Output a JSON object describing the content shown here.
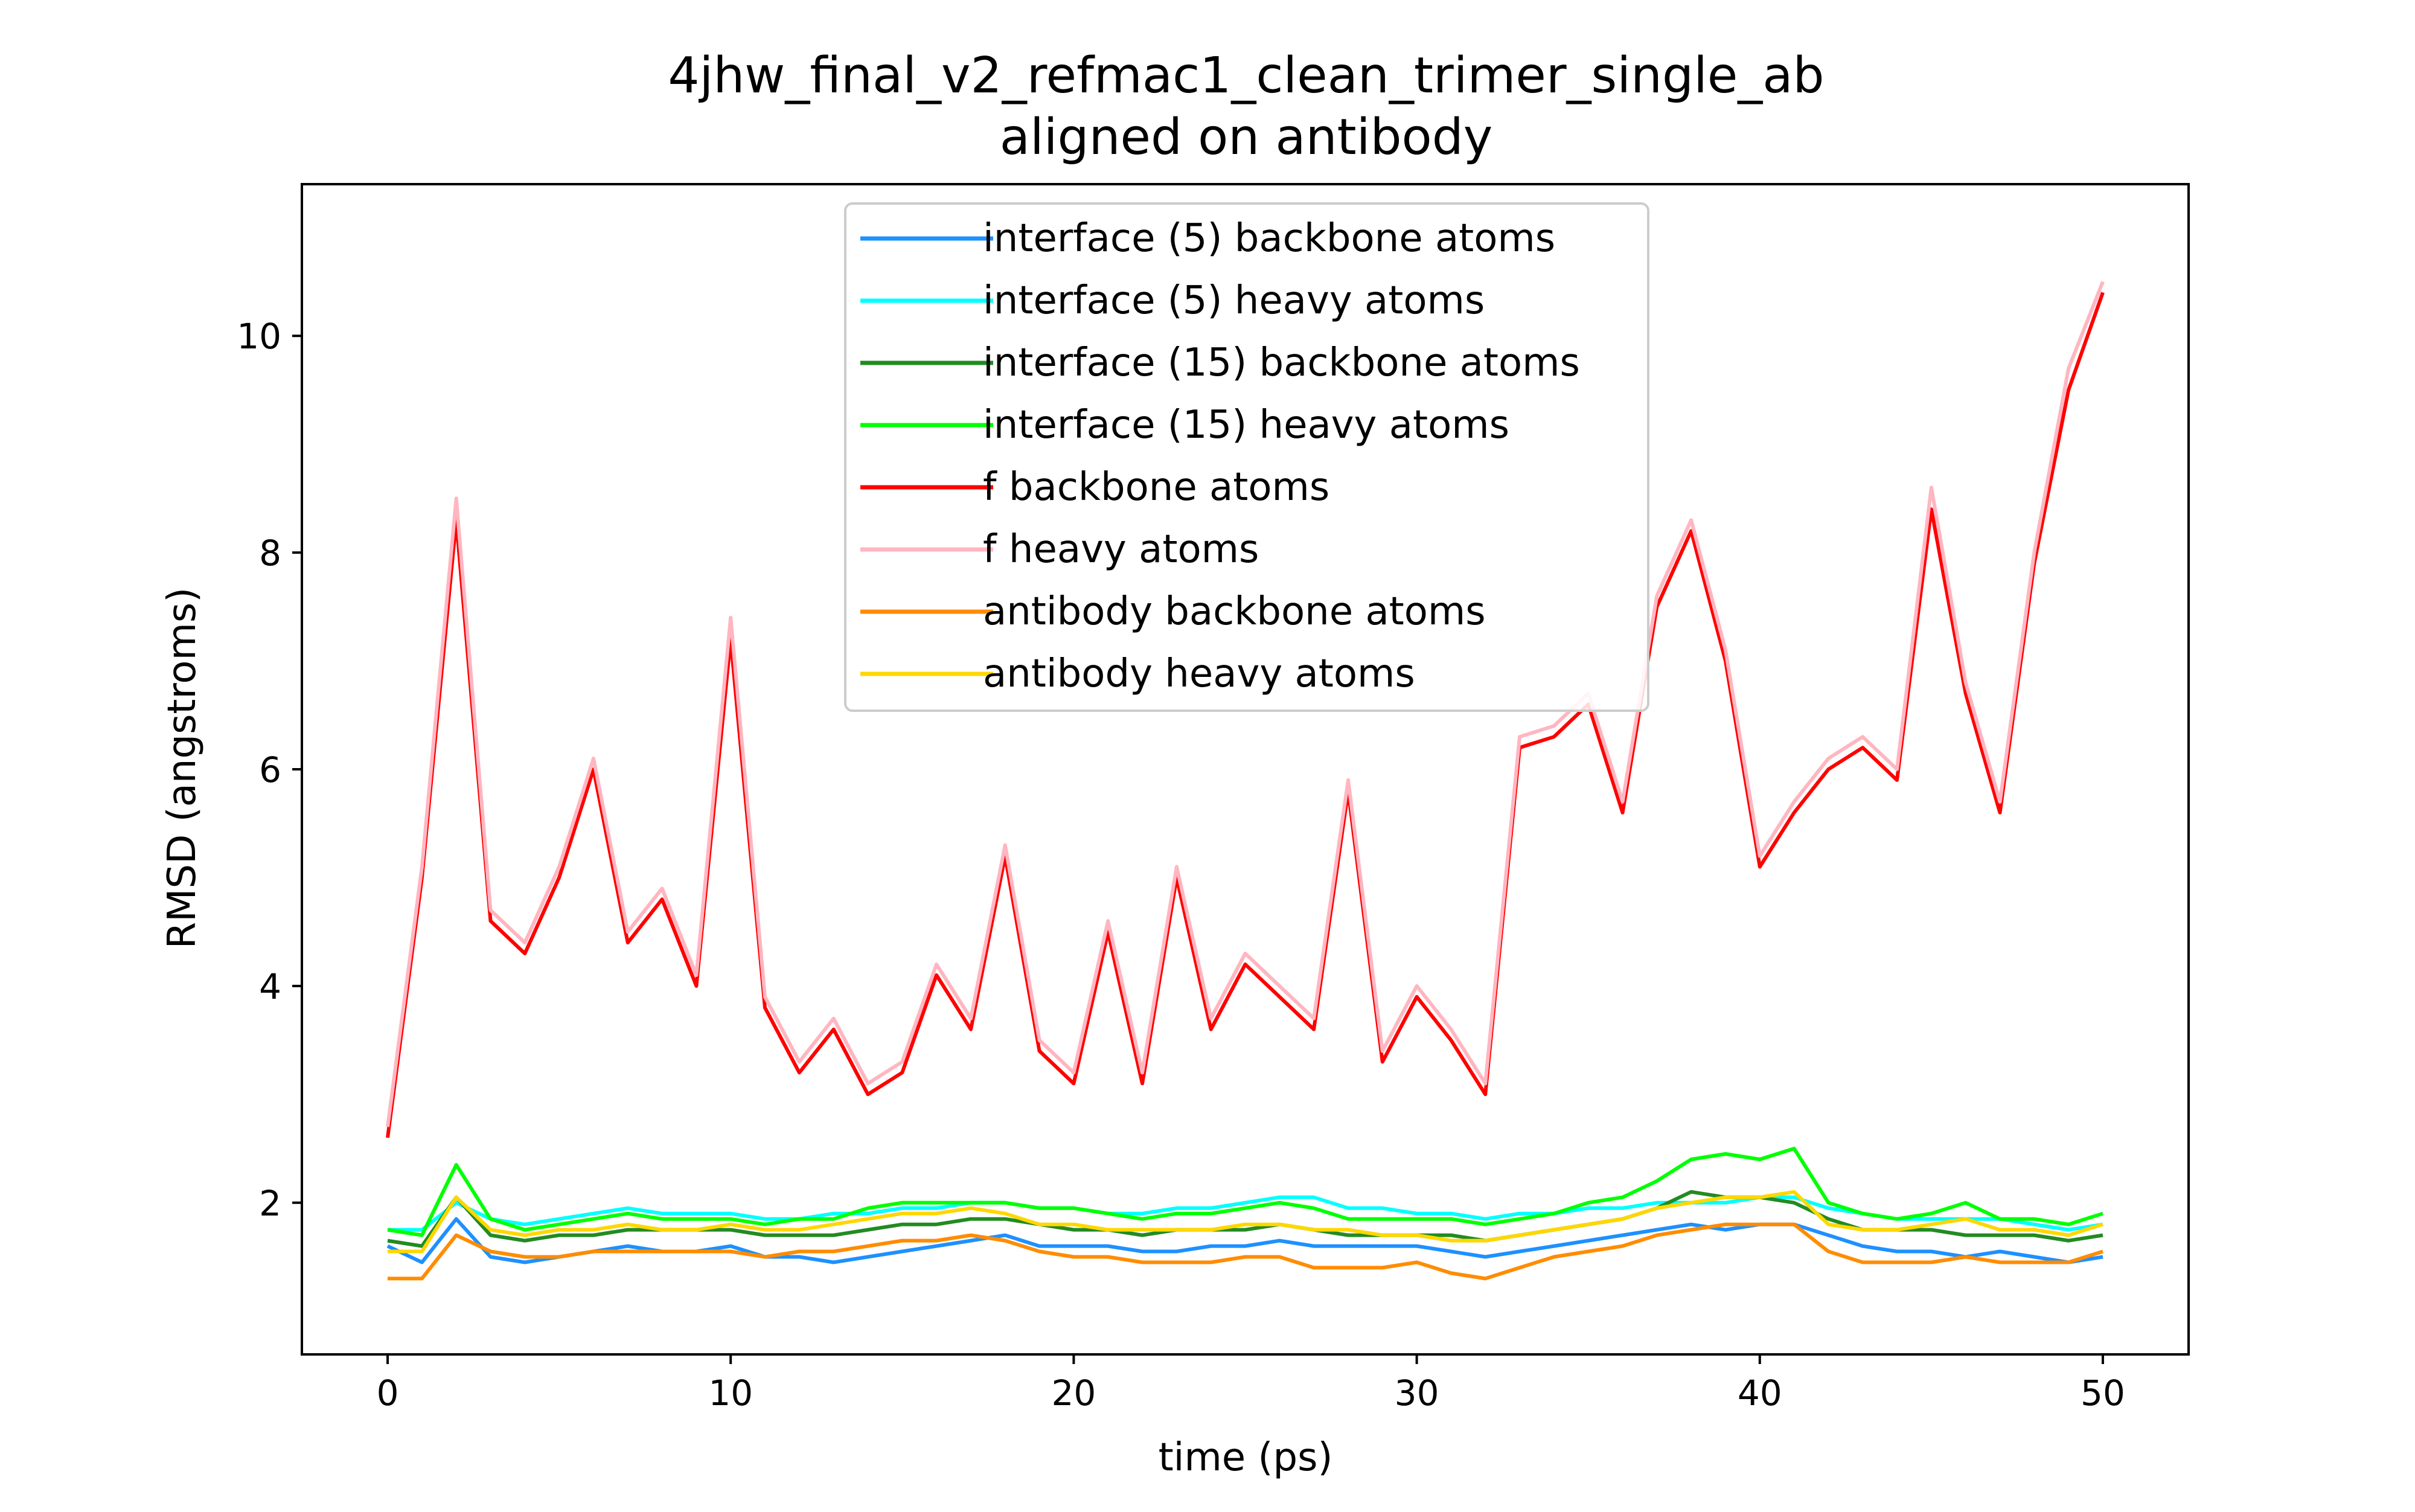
{
  "chart_data": {
    "type": "line",
    "title": "4jhw_final_v2_refmac1_clean_trimer_single_ab",
    "subtitle": "aligned on antibody",
    "xlabel": "time (ps)",
    "ylabel": "RMSD (angstroms)",
    "xlim": [
      -2.5,
      52.5
    ],
    "ylim": [
      0.6,
      11.4
    ],
    "xticks": [
      0,
      10,
      20,
      30,
      40,
      50
    ],
    "yticks": [
      2,
      4,
      6,
      8,
      10
    ],
    "grid": false,
    "legend_position": "top-center",
    "series": [
      {
        "name": "interface (5) backbone atoms",
        "color": "#1e90ff",
        "x": [
          0,
          1,
          2,
          3,
          4,
          5,
          6,
          7,
          8,
          9,
          10,
          11,
          12,
          13,
          14,
          15,
          16,
          17,
          18,
          19,
          20,
          21,
          22,
          23,
          24,
          25,
          26,
          27,
          28,
          29,
          30,
          31,
          32,
          33,
          34,
          35,
          36,
          37,
          38,
          39,
          40,
          41,
          42,
          43,
          44,
          45,
          46,
          47,
          48,
          49,
          50
        ],
        "values": [
          1.6,
          1.45,
          1.85,
          1.5,
          1.45,
          1.5,
          1.55,
          1.6,
          1.55,
          1.55,
          1.6,
          1.5,
          1.5,
          1.45,
          1.5,
          1.55,
          1.6,
          1.65,
          1.7,
          1.6,
          1.6,
          1.6,
          1.55,
          1.55,
          1.6,
          1.6,
          1.65,
          1.6,
          1.6,
          1.6,
          1.6,
          1.55,
          1.5,
          1.55,
          1.6,
          1.65,
          1.7,
          1.75,
          1.8,
          1.75,
          1.8,
          1.8,
          1.7,
          1.6,
          1.55,
          1.55,
          1.5,
          1.55,
          1.5,
          1.45,
          1.5
        ]
      },
      {
        "name": "interface (5) heavy atoms",
        "color": "#00ffff",
        "x": [
          0,
          1,
          2,
          3,
          4,
          5,
          6,
          7,
          8,
          9,
          10,
          11,
          12,
          13,
          14,
          15,
          16,
          17,
          18,
          19,
          20,
          21,
          22,
          23,
          24,
          25,
          26,
          27,
          28,
          29,
          30,
          31,
          32,
          33,
          34,
          35,
          36,
          37,
          38,
          39,
          40,
          41,
          42,
          43,
          44,
          45,
          46,
          47,
          48,
          49,
          50
        ],
        "values": [
          1.75,
          1.75,
          2.0,
          1.85,
          1.8,
          1.85,
          1.9,
          1.95,
          1.9,
          1.9,
          1.9,
          1.85,
          1.85,
          1.9,
          1.9,
          1.95,
          1.95,
          2.0,
          2.0,
          1.95,
          1.95,
          1.9,
          1.9,
          1.95,
          1.95,
          2.0,
          2.05,
          2.05,
          1.95,
          1.95,
          1.9,
          1.9,
          1.85,
          1.9,
          1.9,
          1.95,
          1.95,
          2.0,
          2.0,
          2.0,
          2.05,
          2.05,
          1.95,
          1.9,
          1.85,
          1.85,
          1.85,
          1.85,
          1.8,
          1.75,
          1.8
        ]
      },
      {
        "name": "interface (15) backbone atoms",
        "color": "#228b22",
        "x": [
          0,
          1,
          2,
          3,
          4,
          5,
          6,
          7,
          8,
          9,
          10,
          11,
          12,
          13,
          14,
          15,
          16,
          17,
          18,
          19,
          20,
          21,
          22,
          23,
          24,
          25,
          26,
          27,
          28,
          29,
          30,
          31,
          32,
          33,
          34,
          35,
          36,
          37,
          38,
          39,
          40,
          41,
          42,
          43,
          44,
          45,
          46,
          47,
          48,
          49,
          50
        ],
        "values": [
          1.65,
          1.6,
          2.05,
          1.7,
          1.65,
          1.7,
          1.7,
          1.75,
          1.75,
          1.75,
          1.75,
          1.7,
          1.7,
          1.7,
          1.75,
          1.8,
          1.8,
          1.85,
          1.85,
          1.8,
          1.75,
          1.75,
          1.7,
          1.75,
          1.75,
          1.75,
          1.8,
          1.75,
          1.7,
          1.7,
          1.7,
          1.7,
          1.65,
          1.7,
          1.75,
          1.8,
          1.85,
          1.95,
          2.1,
          2.05,
          2.05,
          2.0,
          1.85,
          1.75,
          1.75,
          1.75,
          1.7,
          1.7,
          1.7,
          1.65,
          1.7
        ]
      },
      {
        "name": "interface (15) heavy atoms",
        "color": "#00ff00",
        "x": [
          0,
          1,
          2,
          3,
          4,
          5,
          6,
          7,
          8,
          9,
          10,
          11,
          12,
          13,
          14,
          15,
          16,
          17,
          18,
          19,
          20,
          21,
          22,
          23,
          24,
          25,
          26,
          27,
          28,
          29,
          30,
          31,
          32,
          33,
          34,
          35,
          36,
          37,
          38,
          39,
          40,
          41,
          42,
          43,
          44,
          45,
          46,
          47,
          48,
          49,
          50
        ],
        "values": [
          1.75,
          1.7,
          2.35,
          1.85,
          1.75,
          1.8,
          1.85,
          1.9,
          1.85,
          1.85,
          1.85,
          1.8,
          1.85,
          1.85,
          1.95,
          2.0,
          2.0,
          2.0,
          2.0,
          1.95,
          1.95,
          1.9,
          1.85,
          1.9,
          1.9,
          1.95,
          2.0,
          1.95,
          1.85,
          1.85,
          1.85,
          1.85,
          1.8,
          1.85,
          1.9,
          2.0,
          2.05,
          2.2,
          2.4,
          2.45,
          2.4,
          2.5,
          2.0,
          1.9,
          1.85,
          1.9,
          2.0,
          1.85,
          1.85,
          1.8,
          1.9
        ]
      },
      {
        "name": "f backbone atoms",
        "color": "#ff0000",
        "x": [
          0,
          1,
          2,
          3,
          4,
          5,
          6,
          7,
          8,
          9,
          10,
          11,
          12,
          13,
          14,
          15,
          16,
          17,
          18,
          19,
          20,
          21,
          22,
          23,
          24,
          25,
          26,
          27,
          28,
          29,
          30,
          31,
          32,
          33,
          34,
          35,
          36,
          37,
          38,
          39,
          40,
          41,
          42,
          43,
          44,
          45,
          46,
          47,
          48,
          49,
          50
        ],
        "values": [
          2.6,
          5.0,
          8.3,
          4.6,
          4.3,
          5.0,
          6.0,
          4.4,
          4.8,
          4.0,
          7.2,
          3.8,
          3.2,
          3.6,
          3.0,
          3.2,
          4.1,
          3.6,
          5.2,
          3.4,
          3.1,
          4.5,
          3.1,
          5.0,
          3.6,
          4.2,
          3.9,
          3.6,
          5.8,
          3.3,
          3.9,
          3.5,
          3.0,
          6.2,
          6.3,
          6.6,
          5.6,
          7.5,
          8.2,
          7.0,
          5.1,
          5.6,
          6.0,
          6.2,
          5.9,
          8.4,
          6.7,
          5.6,
          7.9,
          9.5,
          10.4
        ]
      },
      {
        "name": "f heavy atoms",
        "color": "#ffb6c1",
        "x": [
          0,
          1,
          2,
          3,
          4,
          5,
          6,
          7,
          8,
          9,
          10,
          11,
          12,
          13,
          14,
          15,
          16,
          17,
          18,
          19,
          20,
          21,
          22,
          23,
          24,
          25,
          26,
          27,
          28,
          29,
          30,
          31,
          32,
          33,
          34,
          35,
          36,
          37,
          38,
          39,
          40,
          41,
          42,
          43,
          44,
          45,
          46,
          47,
          48,
          49,
          50
        ],
        "values": [
          2.7,
          5.1,
          8.5,
          4.7,
          4.4,
          5.1,
          6.1,
          4.5,
          4.9,
          4.1,
          7.4,
          3.9,
          3.3,
          3.7,
          3.1,
          3.3,
          4.2,
          3.7,
          5.3,
          3.5,
          3.2,
          4.6,
          3.2,
          5.1,
          3.7,
          4.3,
          4.0,
          3.7,
          5.9,
          3.4,
          4.0,
          3.6,
          3.1,
          6.3,
          6.4,
          6.7,
          5.7,
          7.6,
          8.3,
          7.1,
          5.2,
          5.7,
          6.1,
          6.3,
          6.0,
          8.6,
          6.8,
          5.7,
          8.0,
          9.7,
          10.5
        ]
      },
      {
        "name": "antibody backbone atoms",
        "color": "#ff8c00",
        "x": [
          0,
          1,
          2,
          3,
          4,
          5,
          6,
          7,
          8,
          9,
          10,
          11,
          12,
          13,
          14,
          15,
          16,
          17,
          18,
          19,
          20,
          21,
          22,
          23,
          24,
          25,
          26,
          27,
          28,
          29,
          30,
          31,
          32,
          33,
          34,
          35,
          36,
          37,
          38,
          39,
          40,
          41,
          42,
          43,
          44,
          45,
          46,
          47,
          48,
          49,
          50
        ],
        "values": [
          1.3,
          1.3,
          1.7,
          1.55,
          1.5,
          1.5,
          1.55,
          1.55,
          1.55,
          1.55,
          1.55,
          1.5,
          1.55,
          1.55,
          1.6,
          1.65,
          1.65,
          1.7,
          1.65,
          1.55,
          1.5,
          1.5,
          1.45,
          1.45,
          1.45,
          1.5,
          1.5,
          1.4,
          1.4,
          1.4,
          1.45,
          1.35,
          1.3,
          1.4,
          1.5,
          1.55,
          1.6,
          1.7,
          1.75,
          1.8,
          1.8,
          1.8,
          1.55,
          1.45,
          1.45,
          1.45,
          1.5,
          1.45,
          1.45,
          1.45,
          1.55
        ]
      },
      {
        "name": "antibody heavy atoms",
        "color": "#ffd700",
        "x": [
          0,
          1,
          2,
          3,
          4,
          5,
          6,
          7,
          8,
          9,
          10,
          11,
          12,
          13,
          14,
          15,
          16,
          17,
          18,
          19,
          20,
          21,
          22,
          23,
          24,
          25,
          26,
          27,
          28,
          29,
          30,
          31,
          32,
          33,
          34,
          35,
          36,
          37,
          38,
          39,
          40,
          41,
          42,
          43,
          44,
          45,
          46,
          47,
          48,
          49,
          50
        ],
        "values": [
          1.55,
          1.55,
          2.05,
          1.75,
          1.7,
          1.75,
          1.75,
          1.8,
          1.75,
          1.75,
          1.8,
          1.75,
          1.75,
          1.8,
          1.85,
          1.9,
          1.9,
          1.95,
          1.9,
          1.8,
          1.8,
          1.75,
          1.75,
          1.75,
          1.75,
          1.8,
          1.8,
          1.75,
          1.75,
          1.7,
          1.7,
          1.65,
          1.65,
          1.7,
          1.75,
          1.8,
          1.85,
          1.95,
          2.0,
          2.05,
          2.05,
          2.1,
          1.8,
          1.75,
          1.75,
          1.8,
          1.85,
          1.75,
          1.75,
          1.7,
          1.8
        ]
      }
    ]
  }
}
